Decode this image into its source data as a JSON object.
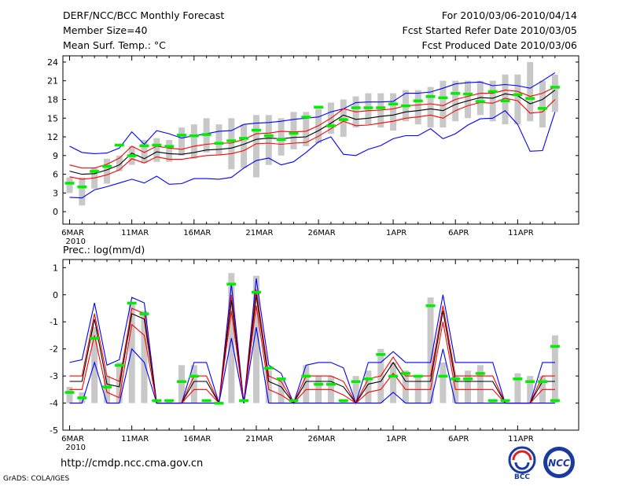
{
  "header": {
    "title": "DERF/NCC/BCC Monthly Forecast",
    "member": "Member Size=40",
    "variable": "Mean Surf. Temp.: °C",
    "period": "For 2010/03/06-2010/04/14",
    "started": "Fcst Started Refer Date 2010/03/05",
    "produced": "Fcst Produced Date 2010/03/06"
  },
  "footer": {
    "url": "http://cmdp.ncc.cma.gov.cn",
    "grads": "GrADS: COLA/IGES",
    "bcc_logo": "BCC",
    "ncc_logo": "NCC"
  },
  "colors": {
    "spread": "#0000ff",
    "member": "#ff0000",
    "mean": "#000000",
    "obs": "#00ee00",
    "bar": "#c8c8c8"
  },
  "chart_data": [
    {
      "type": "line",
      "title": "Mean Surf. Temp.: °C",
      "days": 40,
      "xticks": [
        {
          "i": 0,
          "label": "6MAR"
        },
        {
          "i": 5,
          "label": "11MAR"
        },
        {
          "i": 10,
          "label": "16MAR"
        },
        {
          "i": 15,
          "label": "21MAR"
        },
        {
          "i": 20,
          "label": "26MAR"
        },
        {
          "i": 26,
          "label": "1APR"
        },
        {
          "i": 31,
          "label": "6APR"
        },
        {
          "i": 36,
          "label": "11APR"
        }
      ],
      "year_label": "2010",
      "ylim": [
        -2,
        25
      ],
      "yticks": [
        0,
        3,
        6,
        9,
        12,
        15,
        18,
        21,
        24
      ],
      "series": [
        {
          "name": "max",
          "values": [
            10.5,
            9.5,
            9.3,
            9.4,
            10.2,
            12.8,
            10.8,
            13.0,
            12.5,
            11.8,
            12.2,
            12.5,
            12.9,
            13.0,
            14.0,
            14.2,
            14.3,
            14.5,
            14.8,
            15.0,
            15.2,
            16.0,
            16.5,
            17.5,
            17.6,
            17.6,
            17.7,
            19.0,
            19.0,
            19.2,
            19.8,
            20.5,
            20.7,
            20.8,
            20.2,
            20.4,
            20.2,
            19.8,
            21.0,
            22.3
          ]
        },
        {
          "name": "upper",
          "values": [
            7.5,
            7.0,
            7.0,
            7.6,
            8.6,
            10.5,
            9.5,
            10.5,
            10.2,
            10.0,
            10.5,
            10.8,
            11.0,
            11.0,
            11.6,
            12.5,
            12.6,
            12.9,
            12.8,
            12.9,
            13.8,
            15.0,
            16.5,
            16.0,
            16.2,
            16.3,
            16.5,
            17.0,
            17.1,
            17.3,
            17.0,
            18.0,
            18.5,
            19.0,
            19.0,
            19.5,
            19.3,
            18.5,
            19.0,
            20.0
          ]
        },
        {
          "name": "mean",
          "values": [
            6.5,
            6.0,
            6.1,
            6.7,
            7.5,
            9.4,
            8.5,
            9.6,
            9.3,
            9.2,
            9.5,
            9.9,
            10.0,
            10.2,
            10.8,
            11.6,
            11.8,
            11.7,
            11.9,
            12.0,
            13.0,
            14.2,
            15.5,
            14.8,
            15.0,
            15.3,
            15.5,
            16.0,
            16.2,
            16.5,
            16.2,
            17.2,
            17.8,
            18.3,
            18.2,
            18.9,
            18.6,
            17.3,
            18.0,
            19.5
          ]
        },
        {
          "name": "lower",
          "values": [
            5.6,
            5.2,
            5.4,
            5.9,
            6.7,
            8.5,
            7.8,
            8.8,
            8.4,
            8.4,
            8.7,
            9.0,
            9.1,
            9.3,
            9.8,
            10.9,
            11.0,
            10.8,
            11.0,
            11.1,
            12.1,
            13.3,
            14.5,
            13.8,
            13.9,
            14.2,
            14.5,
            15.0,
            15.2,
            15.5,
            15.0,
            16.2,
            17.0,
            17.5,
            17.4,
            18.2,
            17.8,
            15.8,
            16.0,
            18.0
          ]
        },
        {
          "name": "min",
          "values": [
            2.3,
            2.2,
            3.5,
            4.0,
            4.6,
            5.2,
            4.6,
            5.7,
            4.4,
            4.5,
            5.3,
            5.3,
            5.2,
            5.5,
            7.0,
            8.2,
            8.6,
            7.5,
            8.0,
            9.5,
            11.2,
            12.0,
            9.2,
            9.0,
            10.0,
            10.6,
            11.7,
            12.2,
            12.2,
            13.3,
            11.7,
            12.5,
            13.9,
            14.9,
            15.0,
            16.2,
            14.0,
            9.7,
            9.8,
            16.0
          ]
        },
        {
          "name": "observed",
          "values": [
            4.6,
            4.0,
            6.5,
            7.3,
            10.7,
            9.0,
            10.6,
            10.7,
            10.5,
            12.3,
            12.2,
            12.4,
            11.0,
            11.4,
            11.8,
            13.1,
            12.2,
            11.6,
            12.6,
            15.2,
            16.8,
            13.8,
            14.8,
            16.7,
            16.7,
            16.7,
            17.3,
            17.0,
            17.8,
            18.5,
            18.3,
            19.0,
            18.9,
            17.7,
            19.3,
            17.8,
            18.8,
            18.2,
            16.6,
            20.0
          ]
        }
      ],
      "bars": [
        [
          3.0,
          5.5
        ],
        [
          1.0,
          5.5
        ],
        [
          3.7,
          7.0
        ],
        [
          4.5,
          8.5
        ],
        [
          6.5,
          9.0
        ],
        [
          7.5,
          10.5
        ],
        [
          7.8,
          11.5
        ],
        [
          8.0,
          11.8
        ],
        [
          8.0,
          11.5
        ],
        [
          9.0,
          13.5
        ],
        [
          8.5,
          14.0
        ],
        [
          9.5,
          15.0
        ],
        [
          9.0,
          14.0
        ],
        [
          6.8,
          15.0
        ],
        [
          7.0,
          14.0
        ],
        [
          5.5,
          15.5
        ],
        [
          7.5,
          15.5
        ],
        [
          9.0,
          15.0
        ],
        [
          10.0,
          16.0
        ],
        [
          10.5,
          16.0
        ],
        [
          11.0,
          16.5
        ],
        [
          12.5,
          17.5
        ],
        [
          12.0,
          18.0
        ],
        [
          13.5,
          18.5
        ],
        [
          14.0,
          19.0
        ],
        [
          13.5,
          19.0
        ],
        [
          13.0,
          19.0
        ],
        [
          14.5,
          19.5
        ],
        [
          14.0,
          19.5
        ],
        [
          13.5,
          20.0
        ],
        [
          13.5,
          21.0
        ],
        [
          14.5,
          21.0
        ],
        [
          15.0,
          21.0
        ],
        [
          15.5,
          21.0
        ],
        [
          14.5,
          21.0
        ],
        [
          14.0,
          22.0
        ],
        [
          14.0,
          22.0
        ],
        [
          14.5,
          24.0
        ],
        [
          13.5,
          21.0
        ],
        [
          16.0,
          22.0
        ]
      ]
    },
    {
      "type": "line",
      "title": "Prec.: log(mm/d)",
      "days": 40,
      "xticks": [
        {
          "i": 0,
          "label": "6MAR"
        },
        {
          "i": 5,
          "label": "11MAR"
        },
        {
          "i": 10,
          "label": "16MAR"
        },
        {
          "i": 15,
          "label": "21MAR"
        },
        {
          "i": 20,
          "label": "26MAR"
        },
        {
          "i": 26,
          "label": "1APR"
        },
        {
          "i": 31,
          "label": "6APR"
        },
        {
          "i": 36,
          "label": "11APR"
        }
      ],
      "year_label": "2010",
      "ylim": [
        -5,
        1.3
      ],
      "yticks": [
        -5,
        -4,
        -3,
        -2,
        -1,
        0,
        1
      ],
      "series": [
        {
          "name": "max",
          "values": [
            -2.5,
            -2.4,
            -0.3,
            -2.6,
            -2.4,
            -0.1,
            -0.3,
            -4.0,
            -4.0,
            -4.0,
            -2.5,
            -2.5,
            -4.0,
            0.4,
            -4.0,
            0.6,
            -2.6,
            -2.9,
            -4.0,
            -2.6,
            -2.5,
            -2.5,
            -2.7,
            -4.0,
            -2.5,
            -2.5,
            -2.1,
            -2.5,
            -2.5,
            -2.5,
            0.0,
            -2.5,
            -2.5,
            -2.5,
            -2.5,
            -4.0,
            -4.0,
            -4.0,
            -2.5,
            -2.5
          ]
        },
        {
          "name": "upper",
          "values": [
            -3.0,
            -3.0,
            -0.7,
            -3.0,
            -3.2,
            -0.5,
            -0.7,
            -4.0,
            -4.0,
            -4.0,
            -3.0,
            -3.0,
            -4.0,
            0.0,
            -4.0,
            0.2,
            -3.0,
            -3.2,
            -4.0,
            -3.0,
            -3.0,
            -3.0,
            -3.2,
            -4.0,
            -3.1,
            -3.0,
            -2.3,
            -3.0,
            -3.0,
            -3.0,
            -0.4,
            -3.0,
            -3.0,
            -3.0,
            -3.0,
            -4.0,
            -4.0,
            -4.0,
            -3.0,
            -3.0
          ]
        },
        {
          "name": "mean",
          "values": [
            -3.2,
            -3.2,
            -0.9,
            -3.3,
            -3.4,
            -0.7,
            -0.9,
            -4.0,
            -4.0,
            -4.0,
            -3.2,
            -3.2,
            -4.0,
            -0.2,
            -4.0,
            0.0,
            -3.2,
            -3.4,
            -4.0,
            -3.2,
            -3.2,
            -3.2,
            -3.4,
            -4.0,
            -3.3,
            -3.2,
            -2.5,
            -3.2,
            -3.2,
            -3.2,
            -0.6,
            -3.2,
            -3.2,
            -3.2,
            -3.2,
            -4.0,
            -4.0,
            -4.0,
            -3.2,
            -3.2
          ]
        },
        {
          "name": "lower",
          "values": [
            -3.5,
            -3.5,
            -1.5,
            -3.6,
            -3.8,
            -1.1,
            -1.5,
            -4.0,
            -4.0,
            -4.0,
            -3.5,
            -3.5,
            -4.0,
            -0.6,
            -4.0,
            -0.4,
            -3.5,
            -3.7,
            -4.0,
            -3.5,
            -3.5,
            -3.5,
            -3.7,
            -4.0,
            -3.6,
            -3.5,
            -2.9,
            -3.5,
            -3.5,
            -3.5,
            -1.0,
            -3.5,
            -3.5,
            -3.5,
            -3.5,
            -4.0,
            -4.0,
            -4.0,
            -3.5,
            -3.5
          ]
        },
        {
          "name": "min",
          "values": [
            -4.0,
            -4.0,
            -2.5,
            -4.0,
            -4.0,
            -2.0,
            -2.5,
            -4.0,
            -4.0,
            -4.0,
            -4.0,
            -4.0,
            -4.0,
            -1.6,
            -4.0,
            -1.2,
            -4.0,
            -4.0,
            -4.0,
            -4.0,
            -4.0,
            -4.0,
            -4.0,
            -4.0,
            -4.0,
            -4.0,
            -3.6,
            -4.0,
            -4.0,
            -4.0,
            -2.0,
            -4.0,
            -4.0,
            -4.0,
            -4.0,
            -4.0,
            -4.0,
            -4.0,
            -4.0,
            -4.0
          ]
        },
        {
          "name": "observed",
          "values": [
            -3.6,
            -3.8,
            -1.6,
            -3.4,
            -2.6,
            -0.3,
            -0.7,
            -3.9,
            -3.9,
            -3.2,
            -3.0,
            -3.9,
            -4.0,
            0.4,
            -3.9,
            0.1,
            -2.7,
            -3.1,
            -3.9,
            -3.0,
            -3.3,
            -3.3,
            -3.9,
            -3.2,
            -3.1,
            -2.2,
            -3.0,
            -2.9,
            -3.0,
            -0.4,
            -3.0,
            -3.1,
            -3.1,
            -2.9,
            -3.9,
            -3.9,
            -3.1,
            -3.2,
            -3.2,
            -1.9
          ]
        },
        {
          "name": "observed-tail",
          "values": [
            -3.9
          ]
        }
      ],
      "bars": [
        [
          -4.0,
          -3.4
        ],
        [
          -4.0,
          -3.6
        ],
        [
          -4.0,
          -1.2
        ],
        [
          -4.0,
          -3.0
        ],
        [
          -4.0,
          -2.5
        ],
        [
          -4.0,
          -0.3
        ],
        [
          -4.0,
          -0.6
        ],
        [
          -4.0,
          -3.9
        ],
        [
          -4.0,
          -3.9
        ],
        [
          -4.0,
          -2.6
        ],
        [
          -4.0,
          -2.6
        ],
        [
          -4.0,
          -4.0
        ],
        [
          -4.0,
          -4.0
        ],
        [
          -4.0,
          0.8
        ],
        [
          -4.0,
          -4.0
        ],
        [
          -4.0,
          0.7
        ],
        [
          -4.0,
          -2.8
        ],
        [
          -4.0,
          -3.1
        ],
        [
          -4.0,
          -3.9
        ],
        [
          -4.0,
          -2.6
        ],
        [
          -4.0,
          -3.0
        ],
        [
          -4.0,
          -3.0
        ],
        [
          -4.0,
          -3.9
        ],
        [
          -4.0,
          -3.0
        ],
        [
          -4.0,
          -2.8
        ],
        [
          -4.0,
          -2.0
        ],
        [
          -4.0,
          -2.5
        ],
        [
          -4.0,
          -2.8
        ],
        [
          -4.0,
          -3.0
        ],
        [
          -4.0,
          -0.1
        ],
        [
          -4.0,
          -2.5
        ],
        [
          -4.0,
          -3.0
        ],
        [
          -4.0,
          -2.8
        ],
        [
          -4.0,
          -2.6
        ],
        [
          -4.0,
          -3.9
        ],
        [
          -4.0,
          -3.9
        ],
        [
          -4.0,
          -2.9
        ],
        [
          -4.0,
          -3.0
        ],
        [
          -4.0,
          -3.0
        ],
        [
          -4.0,
          -1.5
        ]
      ]
    }
  ]
}
